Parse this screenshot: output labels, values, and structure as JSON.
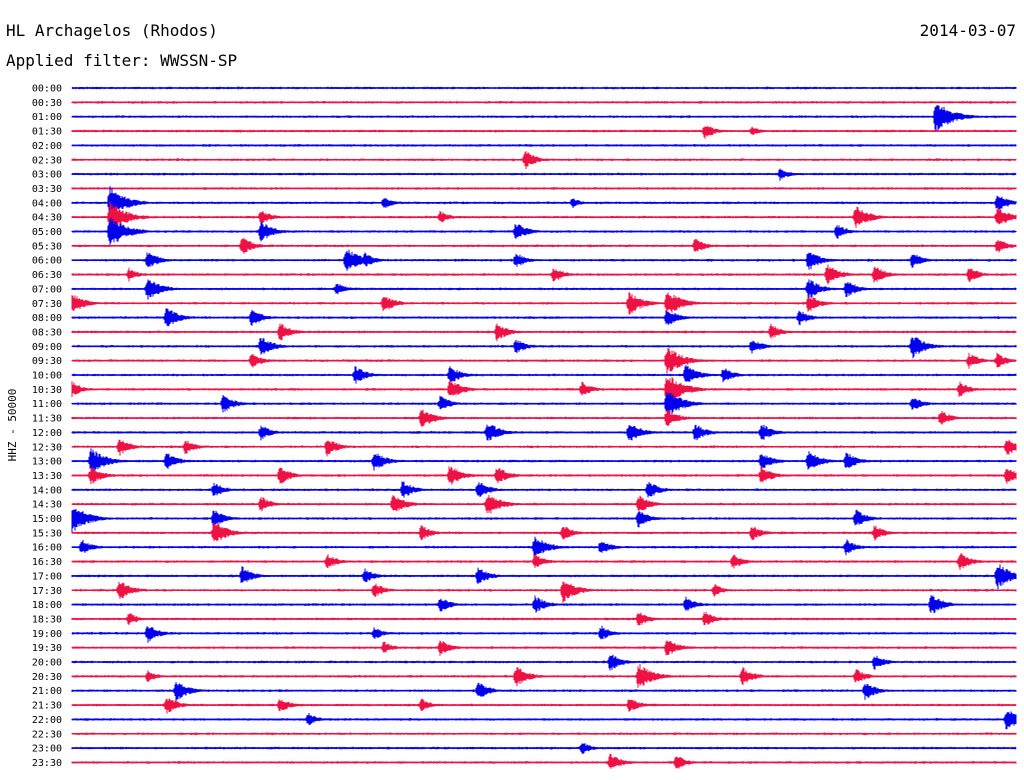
{
  "header": {
    "station": "HL Archagelos (Rhodos)",
    "date": "2014-03-07",
    "filter": "Applied filter: WWSSN-SP"
  },
  "chart_data": {
    "type": "line",
    "title": "HL Archagelos (Rhodos)",
    "ylabel": "HHZ - 50000",
    "trace_colors": [
      "#0000ee",
      "#ee1144"
    ],
    "rows": [
      {
        "label": "00:00",
        "color": "#0000ee",
        "events": []
      },
      {
        "label": "00:30",
        "color": "#ee1144",
        "events": []
      },
      {
        "label": "01:00",
        "color": "#0000ee",
        "events": [
          [
            0.915,
            1.0
          ]
        ]
      },
      {
        "label": "01:30",
        "color": "#ee1144",
        "events": [
          [
            0.67,
            0.4
          ],
          [
            0.72,
            0.2
          ]
        ]
      },
      {
        "label": "02:00",
        "color": "#0000ee",
        "events": []
      },
      {
        "label": "02:30",
        "color": "#ee1144",
        "events": [
          [
            0.48,
            0.5
          ]
        ]
      },
      {
        "label": "03:00",
        "color": "#0000ee",
        "events": [
          [
            0.75,
            0.3
          ]
        ]
      },
      {
        "label": "03:30",
        "color": "#ee1144",
        "events": []
      },
      {
        "label": "04:00",
        "color": "#0000ee",
        "events": [
          [
            0.04,
            1.0
          ],
          [
            0.33,
            0.3
          ],
          [
            0.53,
            0.2
          ],
          [
            0.98,
            0.5
          ]
        ]
      },
      {
        "label": "04:30",
        "color": "#ee1144",
        "events": [
          [
            0.04,
            1.0
          ],
          [
            0.2,
            0.4
          ],
          [
            0.39,
            0.3
          ],
          [
            0.83,
            0.7
          ],
          [
            0.98,
            0.6
          ]
        ]
      },
      {
        "label": "05:00",
        "color": "#0000ee",
        "events": [
          [
            0.04,
            1.0
          ],
          [
            0.2,
            0.6
          ],
          [
            0.47,
            0.5
          ],
          [
            0.81,
            0.4
          ]
        ]
      },
      {
        "label": "05:30",
        "color": "#ee1144",
        "events": [
          [
            0.18,
            0.5
          ],
          [
            0.66,
            0.4
          ],
          [
            0.98,
            0.4
          ]
        ]
      },
      {
        "label": "06:00",
        "color": "#0000ee",
        "events": [
          [
            0.08,
            0.5
          ],
          [
            0.29,
            0.8
          ],
          [
            0.31,
            0.4
          ],
          [
            0.47,
            0.4
          ],
          [
            0.78,
            0.6
          ],
          [
            0.89,
            0.4
          ]
        ]
      },
      {
        "label": "06:30",
        "color": "#ee1144",
        "events": [
          [
            0.06,
            0.3
          ],
          [
            0.51,
            0.4
          ],
          [
            0.8,
            0.6
          ],
          [
            0.85,
            0.5
          ],
          [
            0.95,
            0.4
          ]
        ]
      },
      {
        "label": "07:00",
        "color": "#0000ee",
        "events": [
          [
            0.08,
            0.7
          ],
          [
            0.28,
            0.3
          ],
          [
            0.78,
            0.6
          ],
          [
            0.82,
            0.5
          ]
        ]
      },
      {
        "label": "07:30",
        "color": "#ee1144",
        "events": [
          [
            0.0,
            0.6
          ],
          [
            0.33,
            0.5
          ],
          [
            0.59,
            0.7
          ],
          [
            0.63,
            0.8
          ],
          [
            0.78,
            0.5
          ]
        ]
      },
      {
        "label": "08:00",
        "color": "#0000ee",
        "events": [
          [
            0.1,
            0.6
          ],
          [
            0.19,
            0.5
          ],
          [
            0.63,
            0.5
          ],
          [
            0.77,
            0.4
          ]
        ]
      },
      {
        "label": "08:30",
        "color": "#ee1144",
        "events": [
          [
            0.22,
            0.5
          ],
          [
            0.45,
            0.5
          ],
          [
            0.74,
            0.4
          ]
        ]
      },
      {
        "label": "09:00",
        "color": "#0000ee",
        "events": [
          [
            0.2,
            0.6
          ],
          [
            0.47,
            0.4
          ],
          [
            0.72,
            0.4
          ],
          [
            0.89,
            0.7
          ]
        ]
      },
      {
        "label": "09:30",
        "color": "#ee1144",
        "events": [
          [
            0.19,
            0.4
          ],
          [
            0.63,
            0.9
          ],
          [
            0.95,
            0.4
          ],
          [
            0.98,
            0.4
          ]
        ]
      },
      {
        "label": "10:00",
        "color": "#0000ee",
        "events": [
          [
            0.3,
            0.5
          ],
          [
            0.4,
            0.5
          ],
          [
            0.65,
            0.6
          ],
          [
            0.69,
            0.4
          ]
        ]
      },
      {
        "label": "10:30",
        "color": "#ee1144",
        "events": [
          [
            0.0,
            0.4
          ],
          [
            0.4,
            0.6
          ],
          [
            0.54,
            0.4
          ],
          [
            0.63,
            1.0
          ],
          [
            0.94,
            0.4
          ]
        ]
      },
      {
        "label": "11:00",
        "color": "#0000ee",
        "events": [
          [
            0.16,
            0.5
          ],
          [
            0.39,
            0.4
          ],
          [
            0.63,
            0.9
          ],
          [
            0.89,
            0.4
          ]
        ]
      },
      {
        "label": "11:30",
        "color": "#ee1144",
        "events": [
          [
            0.37,
            0.6
          ],
          [
            0.63,
            0.5
          ],
          [
            0.92,
            0.4
          ]
        ]
      },
      {
        "label": "12:00",
        "color": "#0000ee",
        "events": [
          [
            0.2,
            0.4
          ],
          [
            0.44,
            0.6
          ],
          [
            0.59,
            0.6
          ],
          [
            0.66,
            0.5
          ],
          [
            0.73,
            0.5
          ]
        ]
      },
      {
        "label": "12:30",
        "color": "#ee1144",
        "events": [
          [
            0.05,
            0.5
          ],
          [
            0.12,
            0.4
          ],
          [
            0.27,
            0.5
          ],
          [
            0.99,
            0.5
          ]
        ]
      },
      {
        "label": "13:00",
        "color": "#0000ee",
        "events": [
          [
            0.02,
            0.8
          ],
          [
            0.1,
            0.5
          ],
          [
            0.32,
            0.6
          ],
          [
            0.73,
            0.5
          ],
          [
            0.78,
            0.6
          ],
          [
            0.82,
            0.5
          ]
        ]
      },
      {
        "label": "13:30",
        "color": "#ee1144",
        "events": [
          [
            0.02,
            0.5
          ],
          [
            0.22,
            0.5
          ],
          [
            0.4,
            0.6
          ],
          [
            0.45,
            0.5
          ],
          [
            0.73,
            0.5
          ],
          [
            0.99,
            0.5
          ]
        ]
      },
      {
        "label": "14:00",
        "color": "#0000ee",
        "events": [
          [
            0.15,
            0.4
          ],
          [
            0.35,
            0.5
          ],
          [
            0.43,
            0.5
          ],
          [
            0.61,
            0.5
          ]
        ]
      },
      {
        "label": "14:30",
        "color": "#ee1144",
        "events": [
          [
            0.2,
            0.4
          ],
          [
            0.34,
            0.6
          ],
          [
            0.44,
            0.7
          ],
          [
            0.6,
            0.5
          ]
        ]
      },
      {
        "label": "15:00",
        "color": "#0000ee",
        "events": [
          [
            0.0,
            0.9
          ],
          [
            0.15,
            0.5
          ],
          [
            0.6,
            0.5
          ],
          [
            0.83,
            0.5
          ]
        ]
      },
      {
        "label": "15:30",
        "color": "#ee1144",
        "events": [
          [
            0.15,
            0.7
          ],
          [
            0.37,
            0.4
          ],
          [
            0.52,
            0.4
          ],
          [
            0.72,
            0.4
          ],
          [
            0.85,
            0.4
          ]
        ]
      },
      {
        "label": "16:00",
        "color": "#0000ee",
        "events": [
          [
            0.01,
            0.4
          ],
          [
            0.49,
            0.7
          ],
          [
            0.56,
            0.4
          ],
          [
            0.82,
            0.4
          ]
        ]
      },
      {
        "label": "16:30",
        "color": "#ee1144",
        "events": [
          [
            0.27,
            0.4
          ],
          [
            0.49,
            0.4
          ],
          [
            0.7,
            0.4
          ],
          [
            0.94,
            0.5
          ]
        ]
      },
      {
        "label": "17:00",
        "color": "#0000ee",
        "events": [
          [
            0.18,
            0.5
          ],
          [
            0.31,
            0.4
          ],
          [
            0.43,
            0.5
          ],
          [
            0.98,
            0.8
          ]
        ]
      },
      {
        "label": "17:30",
        "color": "#ee1144",
        "events": [
          [
            0.05,
            0.6
          ],
          [
            0.32,
            0.4
          ],
          [
            0.52,
            0.7
          ],
          [
            0.68,
            0.3
          ]
        ]
      },
      {
        "label": "18:00",
        "color": "#0000ee",
        "events": [
          [
            0.39,
            0.4
          ],
          [
            0.49,
            0.5
          ],
          [
            0.65,
            0.4
          ],
          [
            0.91,
            0.6
          ]
        ]
      },
      {
        "label": "18:30",
        "color": "#ee1144",
        "events": [
          [
            0.06,
            0.3
          ],
          [
            0.6,
            0.4
          ],
          [
            0.67,
            0.4
          ]
        ]
      },
      {
        "label": "19:00",
        "color": "#0000ee",
        "events": [
          [
            0.08,
            0.5
          ],
          [
            0.32,
            0.3
          ],
          [
            0.56,
            0.4
          ]
        ]
      },
      {
        "label": "19:30",
        "color": "#ee1144",
        "events": [
          [
            0.33,
            0.3
          ],
          [
            0.39,
            0.4
          ],
          [
            0.63,
            0.5
          ]
        ]
      },
      {
        "label": "20:00",
        "color": "#0000ee",
        "events": [
          [
            0.57,
            0.5
          ],
          [
            0.85,
            0.4
          ]
        ]
      },
      {
        "label": "20:30",
        "color": "#ee1144",
        "events": [
          [
            0.08,
            0.3
          ],
          [
            0.47,
            0.6
          ],
          [
            0.6,
            0.8
          ],
          [
            0.71,
            0.5
          ],
          [
            0.83,
            0.4
          ]
        ]
      },
      {
        "label": "21:00",
        "color": "#0000ee",
        "events": [
          [
            0.11,
            0.6
          ],
          [
            0.43,
            0.5
          ],
          [
            0.84,
            0.5
          ]
        ]
      },
      {
        "label": "21:30",
        "color": "#ee1144",
        "events": [
          [
            0.1,
            0.5
          ],
          [
            0.22,
            0.4
          ],
          [
            0.37,
            0.3
          ],
          [
            0.59,
            0.4
          ]
        ]
      },
      {
        "label": "22:00",
        "color": "#0000ee",
        "events": [
          [
            0.25,
            0.3
          ],
          [
            0.99,
            0.7
          ]
        ]
      },
      {
        "label": "22:30",
        "color": "#ee1144",
        "events": []
      },
      {
        "label": "23:00",
        "color": "#0000ee",
        "events": [
          [
            0.54,
            0.3
          ]
        ]
      },
      {
        "label": "23:30",
        "color": "#ee1144",
        "events": [
          [
            0.57,
            0.5
          ],
          [
            0.64,
            0.4
          ]
        ]
      }
    ]
  }
}
